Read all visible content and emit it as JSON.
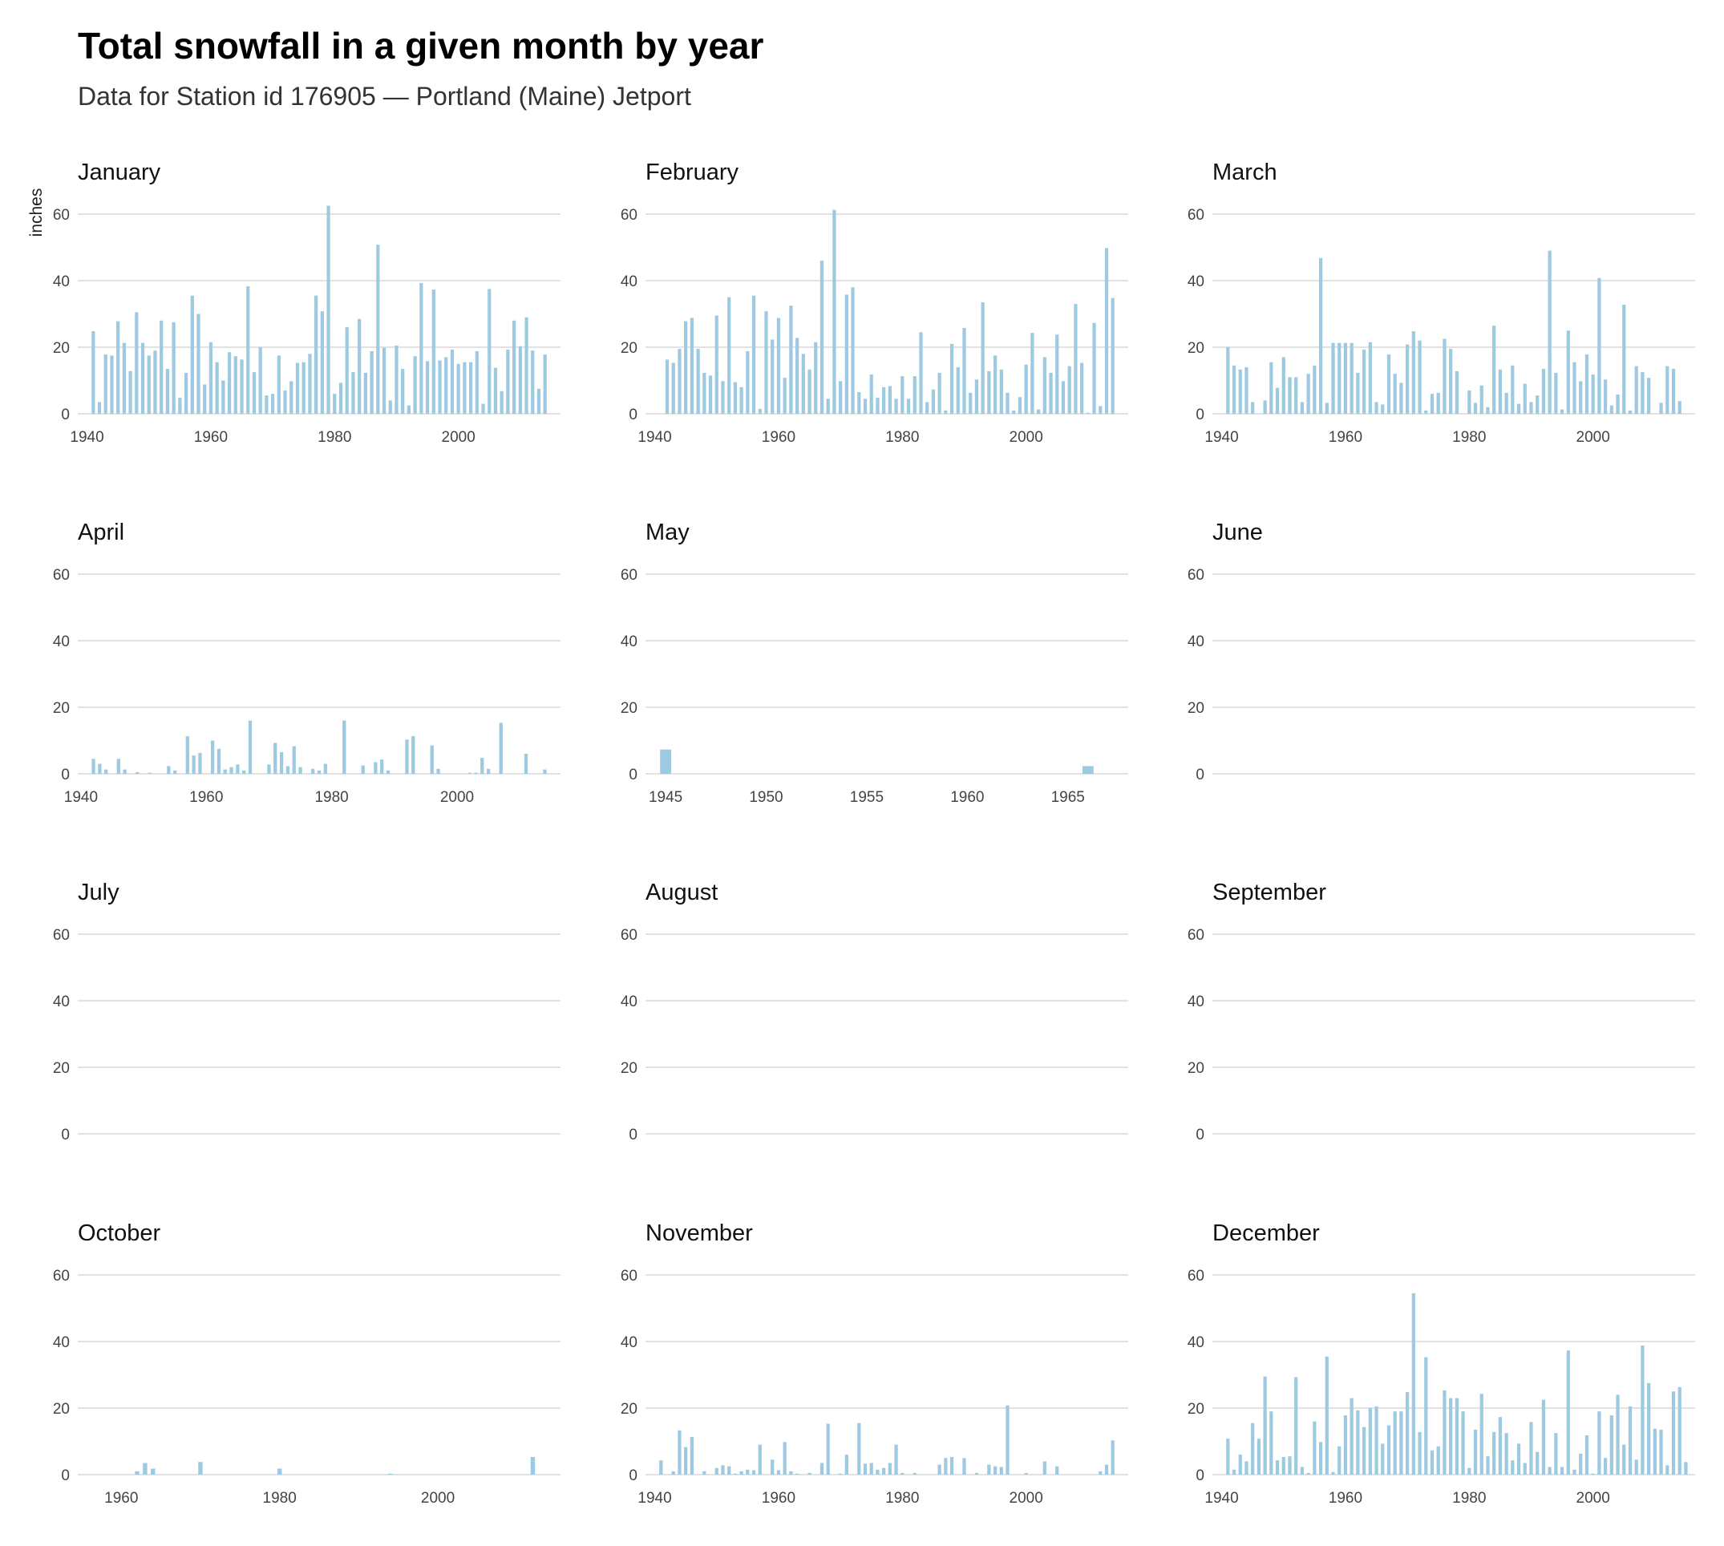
{
  "header": {
    "title": "Total snowfall in a given month by year",
    "subtitle": "Data for Station id 176905 — Portland (Maine) Jetport"
  },
  "chart_data": {
    "type": "bar",
    "ylabel": "inches",
    "ylim": [
      0,
      65
    ],
    "yticks": [
      0,
      20,
      40,
      60
    ],
    "grid": "horizontal",
    "bar_color": "#9ecae1",
    "grid_color": "#d9d9d9",
    "panels": [
      {
        "title": "January",
        "xlim": [
          1938.5,
          2016.5
        ],
        "xticks": [
          1940,
          1960,
          1980,
          2000
        ],
        "x": [
          1941,
          1942,
          1943,
          1944,
          1945,
          1946,
          1947,
          1948,
          1949,
          1950,
          1951,
          1952,
          1953,
          1954,
          1955,
          1956,
          1957,
          1958,
          1959,
          1960,
          1961,
          1962,
          1963,
          1964,
          1965,
          1966,
          1967,
          1968,
          1969,
          1970,
          1971,
          1972,
          1973,
          1974,
          1975,
          1976,
          1977,
          1978,
          1979,
          1980,
          1981,
          1982,
          1983,
          1984,
          1985,
          1986,
          1987,
          1988,
          1989,
          1990,
          1991,
          1992,
          1993,
          1994,
          1995,
          1996,
          1997,
          1998,
          1999,
          2000,
          2001,
          2002,
          2003,
          2004,
          2005,
          2006,
          2007,
          2008,
          2009,
          2010,
          2011,
          2012,
          2013,
          2014
        ],
        "values": [
          24.8,
          3.5,
          17.8,
          17.5,
          27.8,
          21.3,
          12.8,
          30.5,
          21.3,
          17.5,
          19,
          28,
          13.5,
          27.5,
          4.8,
          12.3,
          35.5,
          30,
          8.8,
          21.5,
          15.5,
          10,
          18.5,
          17.3,
          16.3,
          38.3,
          12.5,
          20,
          5.5,
          6,
          17.5,
          7,
          9.8,
          15.3,
          15.5,
          18,
          35.5,
          30.8,
          62.5,
          6,
          9.3,
          26,
          12.5,
          28.5,
          12.3,
          18.8,
          50.8,
          19.8,
          4,
          20.5,
          13.5,
          2.5,
          17.3,
          39.3,
          15.8,
          37.3,
          16,
          17,
          19.3,
          15,
          15.5,
          15.5,
          18.8,
          3,
          37.5,
          13.8,
          6.8,
          19.3,
          28,
          20.3,
          29,
          19,
          7.5,
          17.8
        ]
      },
      {
        "title": "February",
        "xlim": [
          1938.5,
          2016.5
        ],
        "xticks": [
          1940,
          1960,
          1980,
          2000
        ],
        "x": [
          1942,
          1943,
          1944,
          1945,
          1946,
          1947,
          1948,
          1949,
          1950,
          1951,
          1952,
          1953,
          1954,
          1955,
          1956,
          1957,
          1958,
          1959,
          1960,
          1961,
          1962,
          1963,
          1964,
          1965,
          1966,
          1967,
          1968,
          1969,
          1970,
          1971,
          1972,
          1973,
          1974,
          1975,
          1976,
          1977,
          1978,
          1979,
          1980,
          1981,
          1982,
          1983,
          1984,
          1985,
          1986,
          1987,
          1988,
          1989,
          1990,
          1991,
          1992,
          1993,
          1994,
          1995,
          1996,
          1997,
          1998,
          1999,
          2000,
          2001,
          2002,
          2003,
          2004,
          2005,
          2006,
          2007,
          2008,
          2009,
          2010,
          2011,
          2012,
          2013,
          2014
        ],
        "values": [
          16.3,
          15.3,
          19.5,
          27.8,
          28.8,
          19.5,
          12.3,
          11.5,
          29.5,
          9.8,
          35,
          9.5,
          8,
          18.8,
          35.5,
          1.5,
          30.8,
          22.3,
          28.8,
          10.8,
          32.5,
          22.8,
          18,
          13.3,
          21.5,
          46,
          4.5,
          61.3,
          9.8,
          35.8,
          38,
          6.5,
          4.5,
          11.8,
          4.8,
          8,
          8.3,
          4.5,
          11.3,
          4.5,
          11.3,
          24.5,
          3.5,
          7.3,
          12.3,
          1,
          21,
          14,
          25.8,
          6.3,
          10.3,
          33.5,
          12.8,
          17.5,
          13.3,
          6.3,
          1,
          5,
          14.8,
          24.3,
          1.3,
          17,
          12.3,
          23.8,
          9.8,
          14.3,
          33,
          15.3,
          0.3,
          27.3,
          2.3,
          49.8,
          34.8
        ]
      },
      {
        "title": "March",
        "xlim": [
          1938.5,
          2016.5
        ],
        "xticks": [
          1940,
          1960,
          1980,
          2000
        ],
        "x": [
          1941,
          1942,
          1943,
          1944,
          1945,
          1947,
          1948,
          1949,
          1950,
          1951,
          1952,
          1953,
          1954,
          1955,
          1956,
          1957,
          1958,
          1959,
          1960,
          1961,
          1962,
          1963,
          1964,
          1965,
          1966,
          1967,
          1968,
          1969,
          1970,
          1971,
          1972,
          1973,
          1974,
          1975,
          1976,
          1977,
          1978,
          1980,
          1981,
          1982,
          1983,
          1984,
          1985,
          1986,
          1987,
          1988,
          1989,
          1990,
          1991,
          1992,
          1993,
          1994,
          1995,
          1996,
          1997,
          1998,
          1999,
          2000,
          2001,
          2002,
          2003,
          2004,
          2005,
          2006,
          2007,
          2008,
          2009,
          2011,
          2012,
          2013,
          2014
        ],
        "values": [
          20,
          14.5,
          13.3,
          14,
          3.5,
          4,
          15.5,
          7.8,
          17,
          11,
          11,
          3.5,
          12,
          14.5,
          46.8,
          3.3,
          21.3,
          21.3,
          21.3,
          21.3,
          12.3,
          19.3,
          21.5,
          3.5,
          2.8,
          17.8,
          12,
          9.3,
          20.8,
          24.8,
          22,
          1,
          6,
          6.3,
          22.5,
          19.5,
          12.8,
          7,
          3.3,
          8.5,
          2,
          26.5,
          13.3,
          6.3,
          14.5,
          3,
          9,
          3.5,
          5.5,
          13.5,
          49,
          12.3,
          1.3,
          25,
          15.5,
          9.8,
          17.8,
          11.8,
          40.8,
          10.3,
          2.5,
          5.8,
          32.8,
          1,
          14.3,
          12.5,
          10.8,
          3.3,
          14.3,
          13.5,
          3.8
        ]
      },
      {
        "title": "April",
        "xlim": [
          1939.5,
          2016.5
        ],
        "xticks": [
          1940,
          1960,
          1980,
          2000
        ],
        "x": [
          1942,
          1943,
          1944,
          1946,
          1947,
          1949,
          1951,
          1954,
          1955,
          1957,
          1958,
          1959,
          1961,
          1962,
          1963,
          1964,
          1965,
          1966,
          1967,
          1970,
          1971,
          1972,
          1973,
          1974,
          1975,
          1977,
          1978,
          1979,
          1982,
          1985,
          1987,
          1988,
          1989,
          1992,
          1993,
          1996,
          1997,
          2002,
          2003,
          2004,
          2005,
          2007,
          2011,
          2014
        ],
        "values": [
          4.5,
          3,
          1.3,
          4.5,
          1.3,
          0.5,
          0.3,
          2.3,
          1,
          11.3,
          5.5,
          6.3,
          10,
          7.5,
          1.3,
          2,
          2.8,
          1,
          16,
          2.8,
          9.3,
          6.5,
          2.3,
          8.3,
          2,
          1.5,
          1,
          3,
          16,
          2.5,
          3.5,
          4.3,
          1,
          10.3,
          11.3,
          8.5,
          1.5,
          0.3,
          0.3,
          4.8,
          1.5,
          15.3,
          6,
          1.3
        ]
      },
      {
        "title": "May",
        "xlim": [
          1944,
          1968
        ],
        "xticks": [
          1945,
          1950,
          1955,
          1960,
          1965
        ],
        "x": [
          1945,
          1966
        ],
        "values": [
          7.3,
          2.3
        ]
      },
      {
        "title": "June",
        "xlim": [
          1938.5,
          2016.5
        ],
        "xticks": [],
        "x": [],
        "values": []
      },
      {
        "title": "July",
        "xlim": [
          1938.5,
          2016.5
        ],
        "xticks": [],
        "x": [],
        "values": []
      },
      {
        "title": "August",
        "xlim": [
          1938.5,
          2016.5
        ],
        "xticks": [],
        "x": [],
        "values": []
      },
      {
        "title": "September",
        "xlim": [
          1938.5,
          2016.5
        ],
        "xticks": [],
        "x": [],
        "values": []
      },
      {
        "title": "October",
        "xlim": [
          1954.5,
          2015.5
        ],
        "xticks": [
          1960,
          1980,
          2000
        ],
        "x": [
          1962,
          1963,
          1964,
          1970,
          1980,
          1994,
          2012
        ],
        "values": [
          1,
          3.5,
          1.8,
          3.8,
          1.8,
          0.3,
          5.3
        ]
      },
      {
        "title": "November",
        "xlim": [
          1938.5,
          2016.5
        ],
        "xticks": [
          1940,
          1960,
          1980,
          2000
        ],
        "x": [
          1941,
          1943,
          1944,
          1945,
          1946,
          1948,
          1950,
          1951,
          1952,
          1953,
          1954,
          1955,
          1956,
          1957,
          1959,
          1960,
          1961,
          1962,
          1963,
          1965,
          1967,
          1968,
          1970,
          1971,
          1973,
          1974,
          1975,
          1976,
          1977,
          1978,
          1979,
          1980,
          1982,
          1986,
          1987,
          1988,
          1990,
          1992,
          1994,
          1995,
          1996,
          1997,
          2000,
          2003,
          2005,
          2012,
          2013,
          2014
        ],
        "values": [
          4.3,
          1,
          13.3,
          8.3,
          11.3,
          1,
          2,
          2.8,
          2.5,
          0.3,
          1,
          1.5,
          1.3,
          9,
          4.5,
          1.3,
          9.8,
          1,
          0.3,
          0.5,
          3.5,
          15.3,
          0.3,
          6,
          15.5,
          3.3,
          3.5,
          1.5,
          2,
          3.5,
          9,
          0.5,
          0.5,
          3,
          5,
          5.3,
          5,
          0.5,
          3,
          2.5,
          2.3,
          20.8,
          0.5,
          4,
          2.5,
          1,
          3,
          10.3
        ]
      },
      {
        "title": "December",
        "xlim": [
          1938.5,
          2016.5
        ],
        "xticks": [
          1940,
          1960,
          1980,
          2000
        ],
        "x": [
          1941,
          1942,
          1943,
          1944,
          1945,
          1946,
          1947,
          1948,
          1949,
          1950,
          1951,
          1952,
          1953,
          1954,
          1955,
          1956,
          1957,
          1958,
          1959,
          1960,
          1961,
          1962,
          1963,
          1964,
          1965,
          1966,
          1967,
          1968,
          1969,
          1970,
          1971,
          1972,
          1973,
          1974,
          1975,
          1976,
          1977,
          1978,
          1979,
          1980,
          1981,
          1982,
          1983,
          1984,
          1985,
          1986,
          1987,
          1988,
          1989,
          1990,
          1991,
          1992,
          1993,
          1994,
          1995,
          1996,
          1997,
          1998,
          1999,
          2000,
          2001,
          2002,
          2003,
          2004,
          2005,
          2006,
          2007,
          2008,
          2009,
          2010,
          2011,
          2012,
          2013,
          2014,
          2015
        ],
        "values": [
          10.8,
          1.5,
          6,
          4,
          15.5,
          10.8,
          29.5,
          19,
          4.3,
          5.3,
          5.5,
          29.3,
          2.3,
          0.5,
          16,
          9.8,
          35.5,
          0.8,
          8.5,
          17.8,
          23,
          19.3,
          14.3,
          20,
          20.5,
          9.3,
          14.8,
          19,
          19,
          24.8,
          54.5,
          12.8,
          35.3,
          7.3,
          8.5,
          25.3,
          23,
          23,
          19,
          2,
          13.5,
          24.3,
          5.5,
          12.8,
          17.3,
          12.5,
          4.3,
          9.3,
          3.5,
          15.8,
          6.8,
          22.5,
          2.3,
          12.5,
          2.3,
          37.3,
          1.5,
          6.3,
          11.8,
          0.3,
          19,
          5,
          17.8,
          24,
          9,
          20.5,
          4.5,
          38.8,
          27.5,
          13.8,
          13.5,
          2.8,
          25,
          26.3,
          3.8
        ]
      }
    ]
  }
}
